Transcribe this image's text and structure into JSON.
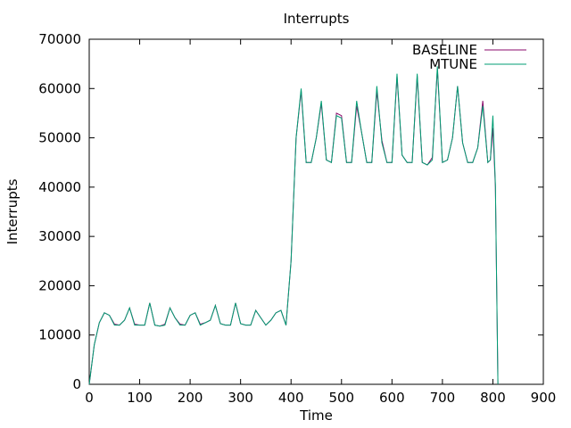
{
  "chart_data": {
    "type": "line",
    "title": "Interrupts",
    "xlabel": "Time",
    "ylabel": "Interrupts",
    "xlim": [
      0,
      900
    ],
    "ylim": [
      0,
      70000
    ],
    "xticks": [
      0,
      100,
      200,
      300,
      400,
      500,
      600,
      700,
      800,
      900
    ],
    "yticks": [
      0,
      10000,
      20000,
      30000,
      40000,
      50000,
      60000,
      70000
    ],
    "grid": false,
    "legend_position": "top-right",
    "series": [
      {
        "name": "BASELINE",
        "color": "#8b0a6b",
        "x": [
          0,
          10,
          20,
          30,
          40,
          50,
          60,
          70,
          80,
          90,
          100,
          110,
          120,
          130,
          140,
          150,
          160,
          170,
          180,
          190,
          200,
          210,
          220,
          230,
          240,
          250,
          260,
          270,
          280,
          290,
          300,
          310,
          320,
          330,
          340,
          350,
          360,
          370,
          380,
          390,
          400,
          410,
          420,
          430,
          440,
          450,
          460,
          470,
          480,
          490,
          500,
          510,
          520,
          530,
          540,
          550,
          560,
          570,
          580,
          590,
          600,
          610,
          620,
          630,
          640,
          650,
          660,
          670,
          680,
          690,
          700,
          710,
          720,
          730,
          740,
          750,
          760,
          770,
          780,
          790,
          795,
          800,
          805,
          810
        ],
        "y": [
          0,
          8000,
          12500,
          14500,
          14000,
          12200,
          12000,
          13000,
          15500,
          12200,
          12000,
          12000,
          16500,
          12000,
          11800,
          12200,
          15500,
          13500,
          12200,
          12000,
          14000,
          14500,
          12200,
          12500,
          13000,
          16000,
          12300,
          12000,
          12000,
          16500,
          12300,
          12000,
          12000,
          15000,
          13500,
          12000,
          13000,
          14500,
          15000,
          12000,
          25000,
          50000,
          59500,
          45000,
          45000,
          50000,
          57000,
          45500,
          45000,
          55000,
          54500,
          45000,
          45000,
          56500,
          51000,
          45000,
          45000,
          59500,
          49500,
          45000,
          45000,
          62500,
          46500,
          45000,
          45000,
          62500,
          45000,
          44500,
          46000,
          64000,
          45000,
          45500,
          50000,
          60500,
          49000,
          45000,
          45000,
          48000,
          57500,
          45000,
          45500,
          52000,
          40000,
          0
        ]
      },
      {
        "name": "MTUNE",
        "color": "#009e73",
        "x": [
          0,
          10,
          20,
          30,
          40,
          50,
          60,
          70,
          80,
          90,
          100,
          110,
          120,
          130,
          140,
          150,
          160,
          170,
          180,
          190,
          200,
          210,
          220,
          230,
          240,
          250,
          260,
          270,
          280,
          290,
          300,
          310,
          320,
          330,
          340,
          350,
          360,
          370,
          380,
          390,
          400,
          410,
          420,
          430,
          440,
          450,
          460,
          470,
          480,
          490,
          500,
          510,
          520,
          530,
          540,
          550,
          560,
          570,
          580,
          590,
          600,
          610,
          620,
          630,
          640,
          650,
          660,
          670,
          680,
          690,
          700,
          710,
          720,
          730,
          740,
          750,
          760,
          770,
          780,
          790,
          795,
          800,
          805,
          810
        ],
        "y": [
          0,
          8000,
          12500,
          14500,
          14000,
          12000,
          12000,
          13000,
          15500,
          12000,
          12000,
          12000,
          16500,
          12000,
          11800,
          12000,
          15500,
          13500,
          12000,
          12000,
          14000,
          14500,
          12000,
          12500,
          13000,
          16000,
          12300,
          12000,
          12000,
          16500,
          12300,
          12000,
          12000,
          15000,
          13500,
          12000,
          13000,
          14500,
          15000,
          12000,
          25000,
          50000,
          60000,
          45000,
          45000,
          50000,
          57500,
          45500,
          45000,
          54500,
          54000,
          45000,
          45000,
          57500,
          51000,
          45000,
          45000,
          60500,
          49000,
          45000,
          45000,
          63000,
          46500,
          45000,
          45000,
          63000,
          45000,
          44500,
          45500,
          64500,
          45000,
          45500,
          50000,
          60500,
          49000,
          45000,
          45000,
          48000,
          56500,
          45000,
          45500,
          54500,
          40500,
          0
        ]
      }
    ]
  }
}
